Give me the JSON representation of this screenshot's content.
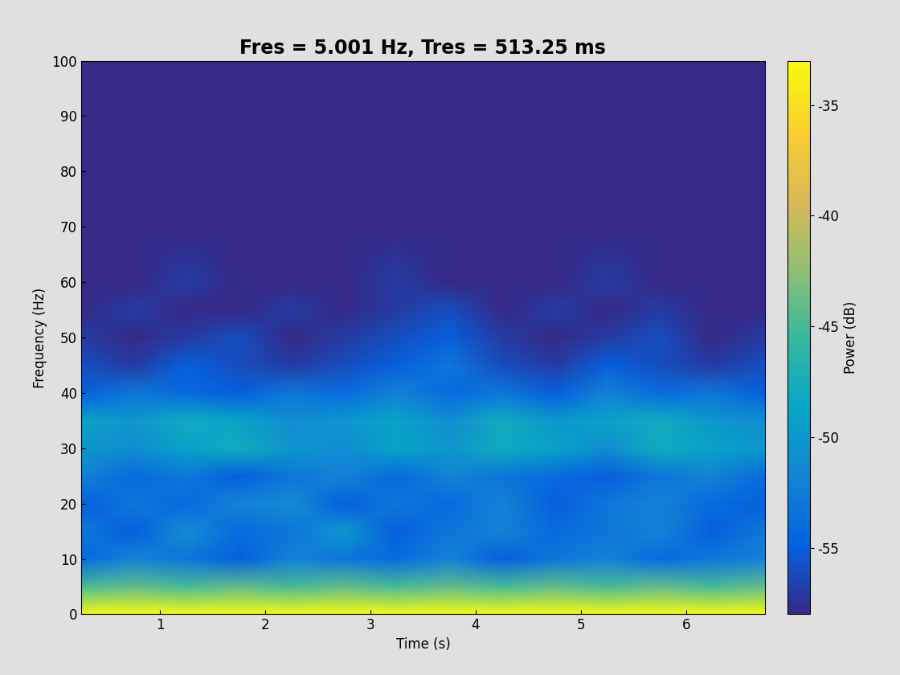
{
  "chart_data": {
    "type": "heatmap",
    "title": "Fres = 5.001 Hz, Tres = 513.25 ms",
    "x_label": "Time (s)",
    "y_label": "Frequency (Hz)",
    "x": [
      0.25,
      0.75,
      1.25,
      1.75,
      2.25,
      2.75,
      3.25,
      3.75,
      4.25,
      4.75,
      5.25,
      5.75,
      6.25,
      6.75
    ],
    "y": [
      0,
      5,
      10,
      15,
      20,
      25,
      30,
      35,
      40,
      45,
      50,
      55,
      60,
      70,
      80,
      90,
      100
    ],
    "values": [
      [
        -33,
        -33,
        -33,
        -33,
        -33,
        -33,
        -33,
        -33,
        -33,
        -33,
        -33,
        -33,
        -33,
        -33
      ],
      [
        -45,
        -44,
        -45,
        -44,
        -45,
        -44,
        -45,
        -44,
        -45,
        -44,
        -45,
        -44,
        -45,
        -44
      ],
      [
        -54,
        -52,
        -53,
        -55,
        -52,
        -53,
        -54,
        -52,
        -55,
        -53,
        -52,
        -54,
        -53,
        -52
      ],
      [
        -53,
        -55,
        -51,
        -54,
        -53,
        -50,
        -55,
        -53,
        -52,
        -54,
        -53,
        -52,
        -55,
        -53
      ],
      [
        -55,
        -53,
        -54,
        -52,
        -51,
        -55,
        -53,
        -54,
        -52,
        -55,
        -53,
        -52,
        -54,
        -55
      ],
      [
        -52,
        -54,
        -53,
        -55,
        -53,
        -52,
        -54,
        -52,
        -53,
        -54,
        -55,
        -53,
        -52,
        -54
      ],
      [
        -50,
        -51,
        -49,
        -48,
        -50,
        -51,
        -49,
        -50,
        -48,
        -49,
        -51,
        -48,
        -49,
        -50
      ],
      [
        -49,
        -50,
        -48,
        -49,
        -51,
        -50,
        -49,
        -51,
        -48,
        -50,
        -49,
        -48,
        -50,
        -51
      ],
      [
        -55,
        -53,
        -54,
        -55,
        -53,
        -54,
        -52,
        -54,
        -53,
        -55,
        -52,
        -54,
        -53,
        -55
      ],
      [
        -56,
        -57,
        -55,
        -56,
        -57,
        -56,
        -55,
        -53,
        -56,
        -57,
        -55,
        -56,
        -57,
        -56
      ],
      [
        -57,
        -58,
        -57,
        -56,
        -58,
        -57,
        -56,
        -55,
        -57,
        -58,
        -57,
        -56,
        -58,
        -57
      ],
      [
        -58,
        -57,
        -58,
        -58,
        -57,
        -58,
        -57,
        -56,
        -58,
        -57,
        -58,
        -57,
        -58,
        -58
      ],
      [
        -58,
        -58,
        -57,
        -58,
        -58,
        -58,
        -57,
        -58,
        -58,
        -58,
        -57,
        -58,
        -58,
        -58
      ],
      [
        -58,
        -58,
        -58,
        -58,
        -58,
        -58,
        -58,
        -58,
        -58,
        -58,
        -58,
        -58,
        -58,
        -58
      ],
      [
        -58,
        -58,
        -58,
        -58,
        -58,
        -58,
        -58,
        -58,
        -58,
        -58,
        -58,
        -58,
        -58,
        -58
      ],
      [
        -58,
        -58,
        -58,
        -58,
        -58,
        -58,
        -58,
        -58,
        -58,
        -58,
        -58,
        -58,
        -58,
        -58
      ],
      [
        -58,
        -58,
        -58,
        -58,
        -58,
        -58,
        -58,
        -58,
        -58,
        -58,
        -58,
        -58,
        -58,
        -58
      ]
    ],
    "xlim": [
      0.25,
      6.75
    ],
    "xticks": [
      1,
      2,
      3,
      4,
      5,
      6
    ],
    "ylim": [
      0,
      100
    ],
    "yticks": [
      0,
      10,
      20,
      30,
      40,
      50,
      60,
      70,
      80,
      90,
      100
    ],
    "colorbar_label": "Power (dB)",
    "colorbar_lim": [
      -58,
      -33
    ],
    "colorbar_ticks": [
      -55,
      -50,
      -45,
      -40,
      -35
    ]
  }
}
